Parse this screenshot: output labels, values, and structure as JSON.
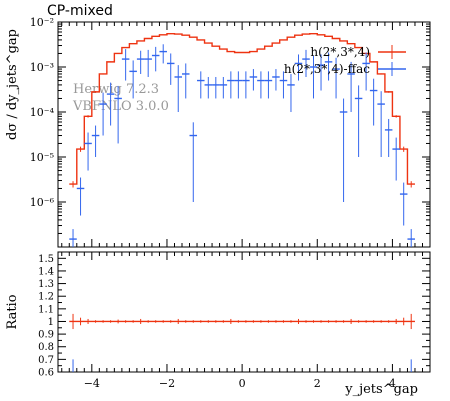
{
  "title": "CP-mixed",
  "chart_data": [
    {
      "type": "line",
      "panel": "main",
      "ylabel": "dσ / dy_jets^gap",
      "yscale": "log",
      "ylim": [
        1e-07,
        0.01
      ],
      "xlim": [
        -4.9,
        5.0
      ],
      "grid": false,
      "legend_position": "top-right",
      "y_ticks": [
        {
          "value": 1e-06,
          "label": "10⁻⁶"
        },
        {
          "value": 1e-05,
          "label": "10⁻⁵"
        },
        {
          "value": 0.0001,
          "label": "10⁻⁴"
        },
        {
          "value": 0.001,
          "label": "10⁻³"
        },
        {
          "value": 0.01,
          "label": "10⁻²"
        }
      ],
      "x_ticks": [
        -4,
        -2,
        0,
        2,
        4
      ],
      "annotations": [
        "Herwig 7.2.3",
        "VBFNLO 3.0.0"
      ],
      "bin_edges": [
        -4.6,
        -4.4,
        -4.2,
        -4.0,
        -3.8,
        -3.6,
        -3.4,
        -3.2,
        -3.0,
        -2.8,
        -2.6,
        -2.4,
        -2.2,
        -2.0,
        -1.8,
        -1.6,
        -1.4,
        -1.2,
        -1.0,
        -0.8,
        -0.6,
        -0.4,
        -0.2,
        0.0,
        0.2,
        0.4,
        0.6,
        0.8,
        1.0,
        1.2,
        1.4,
        1.6,
        1.8,
        2.0,
        2.2,
        2.4,
        2.6,
        2.8,
        3.0,
        3.2,
        3.4,
        3.6,
        3.8,
        4.0,
        4.2,
        4.4,
        4.6
      ],
      "series": [
        {
          "name": "h(2*,3*,4)",
          "color": "#ee3311",
          "values": [
            2.5e-06,
            1.5e-05,
            8e-05,
            0.00028,
            0.0007,
            0.0013,
            0.002,
            0.0027,
            0.0033,
            0.0038,
            0.0043,
            0.0048,
            0.0052,
            0.0055,
            0.0054,
            0.0051,
            0.0046,
            0.004,
            0.0034,
            0.0029,
            0.0025,
            0.0022,
            0.0021,
            0.0021,
            0.0022,
            0.0025,
            0.0029,
            0.0034,
            0.004,
            0.0046,
            0.0051,
            0.0054,
            0.0055,
            0.0052,
            0.0048,
            0.0043,
            0.0038,
            0.0033,
            0.0027,
            0.002,
            0.0013,
            0.0007,
            0.00028,
            8e-05,
            1.5e-05,
            2.5e-06
          ],
          "errors": [
            4e-07,
            2e-06,
            5e-06,
            1.2e-05,
            2e-05,
            3e-05,
            4e-05,
            5e-05,
            5e-05,
            5e-05,
            6e-05,
            6e-05,
            6e-05,
            7e-05,
            7e-05,
            6e-05,
            6e-05,
            5e-05,
            5e-05,
            4e-05,
            4e-05,
            4e-05,
            4e-05,
            4e-05,
            4e-05,
            4e-05,
            4e-05,
            5e-05,
            5e-05,
            6e-05,
            6e-05,
            7e-05,
            7e-05,
            6e-05,
            6e-05,
            6e-05,
            5e-05,
            5e-05,
            5e-05,
            4e-05,
            3e-05,
            2e-05,
            1.2e-05,
            5e-06,
            2e-06,
            4e-07
          ],
          "ratio": [
            1,
            1,
            1,
            1,
            1,
            1,
            1,
            1,
            1,
            1,
            1,
            1,
            1,
            1,
            1,
            1,
            1,
            1,
            1,
            1,
            1,
            1,
            1,
            1,
            1,
            1,
            1,
            1,
            1,
            1,
            1,
            1,
            1,
            1,
            1,
            1,
            1,
            1,
            1,
            1,
            1,
            1,
            1,
            1,
            1,
            1
          ],
          "ratio_errors": [
            0.06,
            0.03,
            0.02,
            0.01,
            0.01,
            0.01,
            0.015,
            0.01,
            0.01,
            0.02,
            0.01,
            0.01,
            0.01,
            0.01,
            0.02,
            0.01,
            0.01,
            0.01,
            0.01,
            0.01,
            0.01,
            0.02,
            0.01,
            0.01,
            0.01,
            0.01,
            0.01,
            0.01,
            0.01,
            0.01,
            0.02,
            0.01,
            0.01,
            0.01,
            0.01,
            0.01,
            0.01,
            0.02,
            0.01,
            0.01,
            0.01,
            0.01,
            0.01,
            0.02,
            0.03,
            0.06
          ]
        },
        {
          "name": "h(2*,3*,4)-ffac",
          "color": "#3366ee",
          "values": [
            1.5e-07,
            2e-06,
            2e-05,
            3e-05,
            0.00015,
            0.00025,
            0.0002,
            0.0015,
            0.0008,
            0.0015,
            0.0015,
            0.0018,
            0.0022,
            0.0012,
            0.0006,
            0.0007,
            3e-05,
            0.0005,
            0.0004,
            0.0004,
            0.0004,
            0.0005,
            0.0005,
            0.0005,
            0.0006,
            0.0005,
            0.0005,
            0.0006,
            0.0005,
            0.0004,
            0.0012,
            0.0015,
            0.001,
            0.0011,
            0.0013,
            0.0009,
            0.0001,
            0.0007,
            0.0002,
            0.0012,
            0.0003,
            0.00015,
            4e-05,
            1.5e-05,
            1.5e-06,
            1.5e-07
          ],
          "errors": [
            1e-07,
            1.5e-06,
            1.5e-05,
            2e-05,
            0.00012,
            0.0002,
            0.00018,
            0.001,
            0.0006,
            0.0008,
            0.0009,
            0.001,
            0.001,
            0.0008,
            0.0005,
            0.0005,
            2.9e-05,
            0.0003,
            0.0002,
            0.0002,
            0.0002,
            0.0003,
            0.0003,
            0.0003,
            0.0003,
            0.0003,
            0.0003,
            0.0003,
            0.0003,
            0.0003,
            0.0007,
            0.0009,
            0.0008,
            0.0008,
            0.0008,
            0.0007,
            9.9e-05,
            0.0006,
            0.00019,
            0.0009,
            0.00025,
            0.00014,
            3e-05,
            1.2e-05,
            1.2e-06,
            1e-07
          ],
          "ratio": [
            0.6,
            0.6
          ],
          "ratio_x": [
            -4.5,
            4.5
          ],
          "ratio_errors": [
            0.1,
            0.1
          ]
        }
      ]
    },
    {
      "type": "line",
      "panel": "ratio",
      "ylabel": "Ratio",
      "xlabel": "y_jets^gap",
      "ylim": [
        0.6,
        1.55
      ],
      "xlim": [
        -4.9,
        5.0
      ],
      "grid": false,
      "y_ticks": [
        {
          "value": 0.6,
          "label": "0.6"
        },
        {
          "value": 0.7,
          "label": "0.7"
        },
        {
          "value": 0.8,
          "label": "0.8"
        },
        {
          "value": 0.9,
          "label": "0.9"
        },
        {
          "value": 1.0,
          "label": "1"
        },
        {
          "value": 1.1,
          "label": "1.1"
        },
        {
          "value": 1.2,
          "label": "1.2"
        },
        {
          "value": 1.3,
          "label": "1.3"
        },
        {
          "value": 1.4,
          "label": "1.4"
        },
        {
          "value": 1.5,
          "label": "1.5"
        }
      ],
      "x_ticks": [
        -4,
        -2,
        0,
        2,
        4
      ]
    }
  ]
}
